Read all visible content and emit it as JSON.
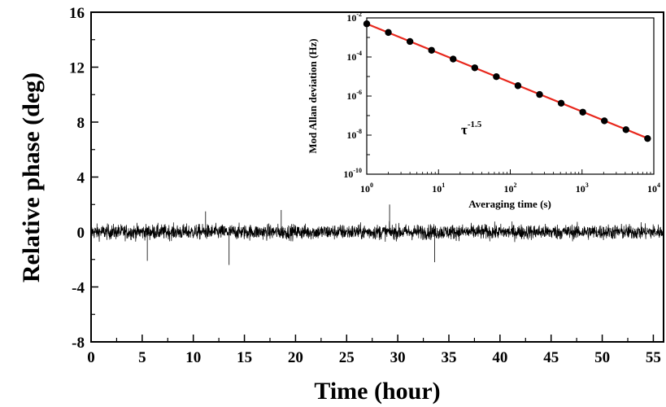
{
  "chart_data": [
    {
      "type": "line",
      "title": "",
      "xlabel": "Time (hour)",
      "ylabel": "Relative phase (deg)",
      "xlim": [
        0,
        56
      ],
      "ylim": [
        -8,
        16
      ],
      "x_ticks": [
        0,
        5,
        10,
        15,
        20,
        25,
        30,
        35,
        40,
        45,
        50,
        55
      ],
      "x_tick_labels": [
        "0",
        "5",
        "10",
        "15",
        "20",
        "25",
        "30",
        "35",
        "40",
        "45",
        "50",
        "55"
      ],
      "y_ticks": [
        -8,
        -4,
        0,
        4,
        8,
        12,
        16
      ],
      "y_tick_labels": [
        "-8",
        "-4",
        "0",
        "4",
        "8",
        "12",
        "16"
      ],
      "series": [
        {
          "color": "#000000",
          "style": "dense noise trace",
          "mean": 0,
          "typical_amplitude": 0.5,
          "envelope_max": 1.2,
          "envelope_min": -1.2,
          "spikes": [
            {
              "x": 5.5,
              "y": -2.1
            },
            {
              "x": 11.2,
              "y": 1.5
            },
            {
              "x": 13.5,
              "y": -2.4
            },
            {
              "x": 18.6,
              "y": 1.6
            },
            {
              "x": 29.2,
              "y": 2.0
            },
            {
              "x": 33.6,
              "y": -2.2
            }
          ]
        }
      ]
    },
    {
      "type": "scatter",
      "title": "",
      "xlabel": "Averaging time (s)",
      "ylabel": "Mod Allan deviation (Hz)",
      "x_scale": "log",
      "y_scale": "log",
      "xlim": [
        1,
        10000
      ],
      "ylim": [
        1e-10,
        0.01
      ],
      "x_tick_labels": [
        {
          "base": "10",
          "exp": "0"
        },
        {
          "base": "10",
          "exp": "1"
        },
        {
          "base": "10",
          "exp": "2"
        },
        {
          "base": "10",
          "exp": "3"
        },
        {
          "base": "10",
          "exp": "4"
        }
      ],
      "y_tick_labels": [
        {
          "base": "10",
          "exp": "-2"
        },
        {
          "base": "10",
          "exp": "-4"
        },
        {
          "base": "10",
          "exp": "-6"
        },
        {
          "base": "10",
          "exp": "-8"
        },
        {
          "base": "10",
          "exp": "-10"
        }
      ],
      "annotation": {
        "base": "τ",
        "exp": "-1.5"
      },
      "series": [
        {
          "marker": "circle",
          "marker_color": "#000000",
          "x": [
            1,
            2,
            4,
            8,
            16,
            32,
            64,
            128,
            256,
            512,
            1024,
            2048,
            4096,
            8192
          ],
          "y": [
            0.005,
            0.0018,
            0.00062,
            0.00022,
            7.8e-05,
            2.8e-05,
            9.8e-06,
            3.4e-06,
            1.2e-06,
            4.3e-07,
            1.5e-07,
            5.4e-08,
            1.9e-08,
            6.7e-09
          ]
        },
        {
          "type": "line",
          "line_color": "#e8281d",
          "x": [
            1,
            9000
          ],
          "y": [
            0.005,
            6e-09
          ]
        }
      ]
    }
  ]
}
